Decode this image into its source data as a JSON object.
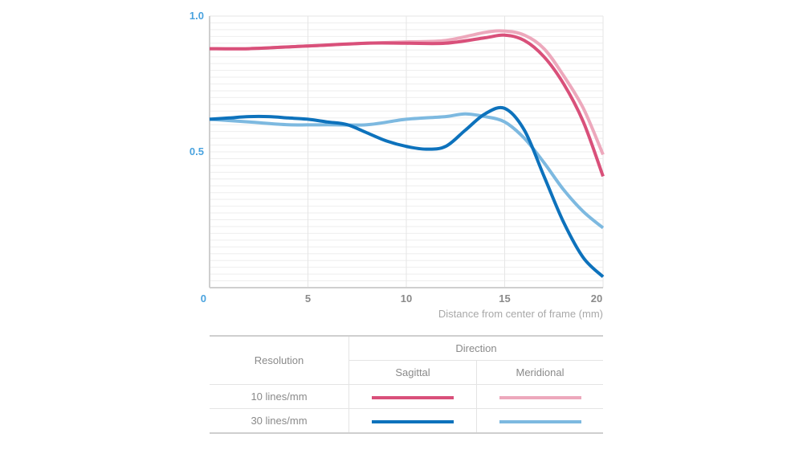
{
  "chart_data": {
    "type": "line",
    "title": "",
    "xlabel": "Distance from center of frame (mm)",
    "ylabel": "",
    "xlim": [
      0,
      20
    ],
    "ylim": [
      0,
      1.0
    ],
    "x_ticks": [
      "0",
      "5",
      "10",
      "15",
      "20"
    ],
    "y_ticks": [
      "1.0",
      "0.5"
    ],
    "grid": true,
    "series": [
      {
        "name": "10 lines/mm Sagittal",
        "color": "#d9507a",
        "x": [
          0,
          2,
          5,
          8,
          10,
          12,
          14,
          15,
          16,
          17,
          18,
          19,
          20
        ],
        "y": [
          0.88,
          0.88,
          0.89,
          0.9,
          0.9,
          0.9,
          0.92,
          0.93,
          0.91,
          0.85,
          0.75,
          0.61,
          0.41
        ]
      },
      {
        "name": "10 lines/mm Meridional",
        "color": "#eda8bc",
        "x": [
          0,
          2,
          5,
          8,
          10,
          12,
          14,
          15,
          16,
          17,
          18,
          19,
          20
        ],
        "y": [
          0.88,
          0.88,
          0.89,
          0.9,
          0.905,
          0.91,
          0.94,
          0.945,
          0.93,
          0.88,
          0.78,
          0.66,
          0.49
        ]
      },
      {
        "name": "30 lines/mm Sagittal",
        "color": "#0d72bc",
        "x": [
          0,
          1,
          2,
          3,
          4,
          5,
          6,
          7,
          8,
          9,
          10,
          11,
          12,
          13,
          14,
          15,
          16,
          17,
          18,
          19,
          20
        ],
        "y": [
          0.62,
          0.625,
          0.63,
          0.63,
          0.625,
          0.62,
          0.61,
          0.6,
          0.57,
          0.54,
          0.52,
          0.51,
          0.52,
          0.58,
          0.64,
          0.66,
          0.58,
          0.41,
          0.24,
          0.11,
          0.04
        ]
      },
      {
        "name": "30 lines/mm Meridional",
        "color": "#7db9e0",
        "x": [
          0,
          2,
          4,
          6,
          8,
          10,
          12,
          13,
          14,
          15,
          16,
          17,
          18,
          19,
          20
        ],
        "y": [
          0.62,
          0.61,
          0.6,
          0.6,
          0.6,
          0.62,
          0.63,
          0.64,
          0.63,
          0.61,
          0.55,
          0.46,
          0.36,
          0.28,
          0.22
        ]
      }
    ]
  },
  "legend": {
    "resolution_header": "Resolution",
    "direction_header": "Direction",
    "sagittal_header": "Sagittal",
    "meridional_header": "Meridional",
    "rows": [
      {
        "label": "10 lines/mm",
        "sagittal_color": "#d9507a",
        "meridional_color": "#eda8bc"
      },
      {
        "label": "30 lines/mm",
        "sagittal_color": "#0d72bc",
        "meridional_color": "#7db9e0"
      }
    ]
  }
}
